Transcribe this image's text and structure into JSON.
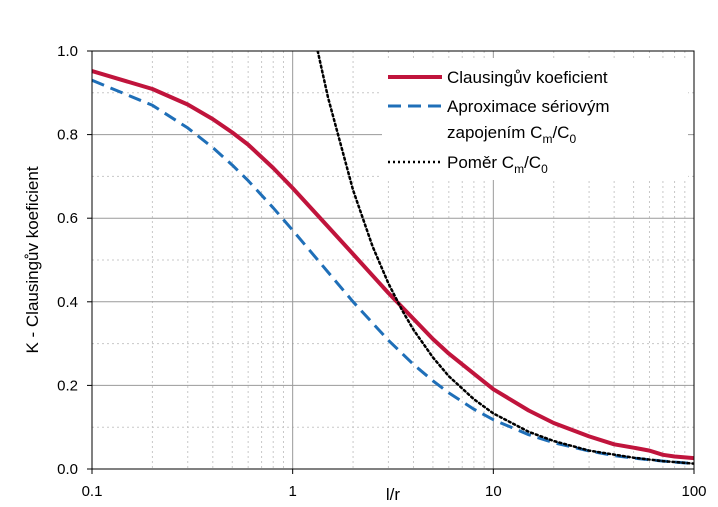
{
  "chart_data": {
    "type": "line",
    "x_scale": "log",
    "xlim": [
      0.1,
      100
    ],
    "ylim": [
      0,
      1.0
    ],
    "xlabel": "l/r",
    "ylabel": "K - Clausingův koeficient",
    "x_ticks": [
      "0.1",
      "1",
      "10",
      "100"
    ],
    "y_ticks": [
      "0.0",
      "0.2",
      "0.4",
      "0.6",
      "0.8",
      "1.0"
    ],
    "grid": true,
    "legend_position": "top-right",
    "series": [
      {
        "name": "Clausingův koeficient",
        "color": "#c0143c",
        "style": "solid",
        "x": [
          0.1,
          0.2,
          0.3,
          0.4,
          0.5,
          0.6,
          0.8,
          1,
          1.5,
          2,
          3,
          4,
          5,
          6,
          8,
          10,
          15,
          20,
          30,
          40,
          50,
          60,
          70,
          80,
          100
        ],
        "y": [
          0.952,
          0.909,
          0.872,
          0.837,
          0.805,
          0.776,
          0.72,
          0.672,
          0.58,
          0.514,
          0.421,
          0.359,
          0.311,
          0.276,
          0.228,
          0.191,
          0.14,
          0.11,
          0.078,
          0.059,
          0.051,
          0.044,
          0.034,
          0.03,
          0.026
        ]
      },
      {
        "name": "Aproximace sériovým zapojením Cm/C0",
        "color": "#1f6fb8",
        "style": "dashed",
        "x": [
          0.1,
          0.2,
          0.3,
          0.4,
          0.5,
          0.6,
          0.8,
          1,
          1.5,
          2,
          3,
          4,
          5,
          6,
          8,
          10,
          15,
          20,
          30,
          40,
          50,
          70,
          100
        ],
        "y": [
          0.93,
          0.87,
          0.816,
          0.769,
          0.727,
          0.69,
          0.625,
          0.571,
          0.471,
          0.4,
          0.308,
          0.25,
          0.211,
          0.182,
          0.143,
          0.118,
          0.082,
          0.063,
          0.043,
          0.032,
          0.026,
          0.019,
          0.013
        ]
      },
      {
        "name": "Poměr Cm/C0",
        "color": "#000000",
        "style": "dotted",
        "x": [
          1.333,
          1.5,
          2,
          2.5,
          3,
          3.5,
          4,
          5,
          6,
          8,
          10,
          15,
          20,
          30,
          50,
          70,
          100
        ],
        "y": [
          1.0,
          0.889,
          0.667,
          0.533,
          0.444,
          0.381,
          0.333,
          0.267,
          0.222,
          0.167,
          0.133,
          0.089,
          0.067,
          0.044,
          0.027,
          0.019,
          0.013
        ]
      }
    ],
    "legend": {
      "entries": [
        {
          "lines": [
            "Clausingův koeficient"
          ]
        },
        {
          "lines": [
            "Aproximace sériovým",
            "zapojením C",
            "m",
            "/C",
            "0"
          ]
        },
        {
          "lines": [
            "Poměr C",
            "m",
            "/C",
            "0"
          ]
        }
      ]
    }
  }
}
